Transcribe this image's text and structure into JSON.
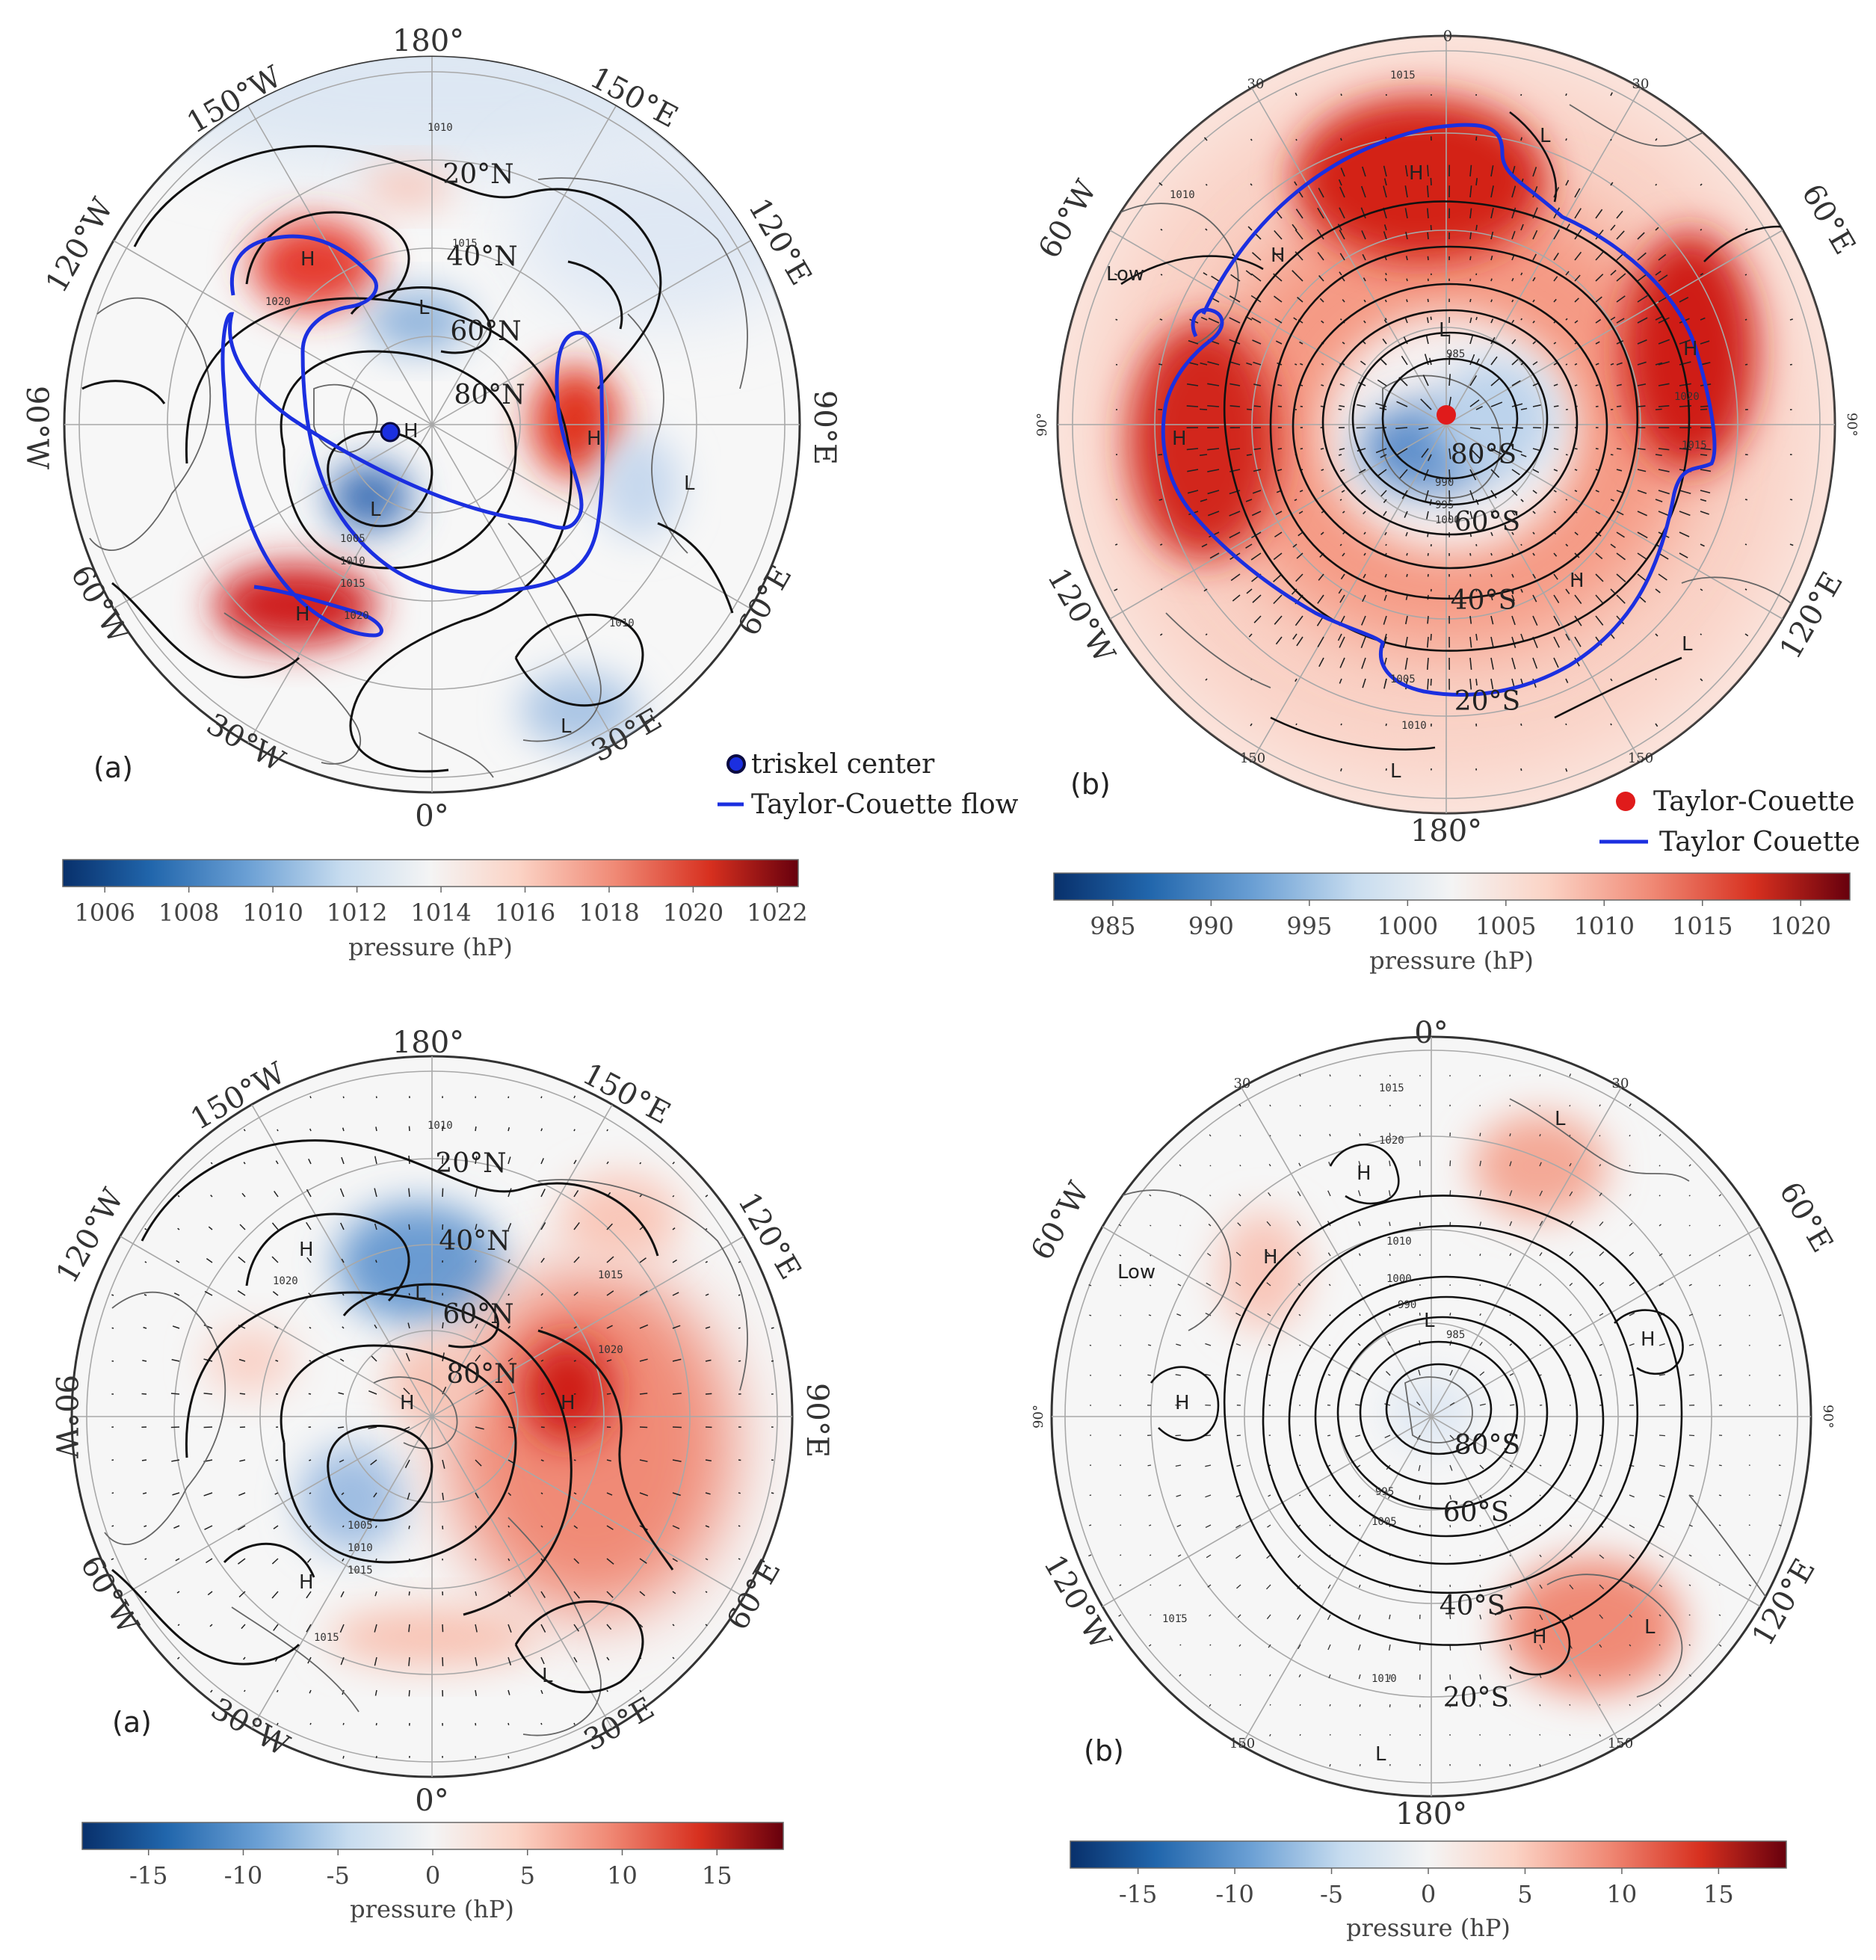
{
  "figure": {
    "panels": [
      {
        "id": "top-left",
        "panel_label": "(a)",
        "hemisphere": "north",
        "lon_labels": [
          "180°",
          "150°E",
          "120°E",
          "90°E",
          "60°E",
          "30°E",
          "0°",
          "30°W",
          "60°W",
          "90°W",
          "120°W",
          "150°W"
        ],
        "lat_labels": [
          "20°N",
          "40°N",
          "60°N",
          "80°N"
        ],
        "pressure_centers": [
          "H",
          "H",
          "H",
          "H",
          "L",
          "L",
          "L",
          "L"
        ],
        "isobar_labels": [
          "1010",
          "1015",
          "1020",
          "1005",
          "1010",
          "1015",
          "1020",
          "1010"
        ],
        "legend": {
          "marker_label": "triskel center",
          "line_label": "Taylor-Couette flow",
          "marker_color": "#1b2fe0",
          "line_color": "#1b2fe0"
        },
        "colorbar": {
          "ticks": [
            "1006",
            "1008",
            "1010",
            "1012",
            "1014",
            "1016",
            "1018",
            "1020",
            "1022"
          ],
          "title": "pressure (hP)",
          "range": [
            1005,
            1022.5
          ]
        }
      },
      {
        "id": "top-right",
        "panel_label": "(b)",
        "hemisphere": "south",
        "lon_labels": [
          "0",
          "60°E",
          "90°",
          "120°E",
          "150",
          "180°",
          "150",
          "120°W",
          "90°",
          "60°W",
          "30",
          "30"
        ],
        "lat_labels": [
          "20°S",
          "40°S",
          "60°S",
          "80°S"
        ],
        "pressure_centers": [
          "H",
          "H",
          "H",
          "H",
          "H",
          "L",
          "L",
          "L",
          "L"
        ],
        "extra_label": "Low",
        "isobar_labels": [
          "1015",
          "1010",
          "1020",
          "1015",
          "985",
          "990",
          "995",
          "1000",
          "1005",
          "1010"
        ],
        "legend": {
          "marker_label": "Taylor-Couette",
          "line_label": "Taylor Couette",
          "marker_color": "#e01b1b",
          "line_color": "#1b2fe0"
        },
        "colorbar": {
          "ticks": [
            "985",
            "990",
            "995",
            "1000",
            "1005",
            "1010",
            "1015",
            "1020"
          ],
          "title": "pressure (hP)",
          "range": [
            982,
            1022.5
          ]
        }
      },
      {
        "id": "bottom-left",
        "panel_label": "(a)",
        "hemisphere": "north",
        "lon_labels": [
          "180°",
          "150°E",
          "120°E",
          "90°E",
          "60°E",
          "30°E",
          "0°",
          "30°W",
          "60°W",
          "90°W",
          "120°W",
          "150°W"
        ],
        "lat_labels": [
          "20°N",
          "40°N",
          "60°N",
          "80°N"
        ],
        "pressure_centers": [
          "H",
          "H",
          "H",
          "H",
          "L",
          "L"
        ],
        "isobar_labels": [
          "1010",
          "1015",
          "1020",
          "1005",
          "1010",
          "1015",
          "1020",
          "1015"
        ],
        "colorbar": {
          "ticks": [
            "-15",
            "-10",
            "-5",
            "0",
            "5",
            "10",
            "15"
          ],
          "title": "pressure (hP)",
          "range": [
            -18.5,
            18.5
          ]
        }
      },
      {
        "id": "bottom-right",
        "panel_label": "(b)",
        "hemisphere": "south",
        "lon_labels": [
          "0°",
          "60°E",
          "90°",
          "120°E",
          "150",
          "180°",
          "150",
          "120°W",
          "90°",
          "60°W",
          "30",
          "30"
        ],
        "lat_labels": [
          "20°S",
          "40°S",
          "60°S",
          "80°S"
        ],
        "pressure_centers": [
          "H",
          "H",
          "H",
          "H",
          "H",
          "L",
          "L",
          "L",
          "L"
        ],
        "extra_label": "Low",
        "isobar_labels": [
          "1015",
          "1020",
          "1010",
          "1000",
          "990",
          "985",
          "995",
          "1005",
          "1010",
          "1015"
        ],
        "colorbar": {
          "ticks": [
            "-15",
            "-10",
            "-5",
            "0",
            "5",
            "10",
            "15"
          ],
          "title": "pressure (hP)",
          "range": [
            -18.5,
            18.5
          ]
        }
      }
    ]
  },
  "colors": {
    "ramp": [
      "#08306b",
      "#2166ac",
      "#6a9fd4",
      "#c7dcef",
      "#f4f4f4",
      "#fbd3c5",
      "#f08a76",
      "#d7301f",
      "#67000d"
    ],
    "contour": "#111111",
    "coast": "#555555",
    "grid": "#9a9a9a",
    "flow": "#1b2fe0"
  }
}
